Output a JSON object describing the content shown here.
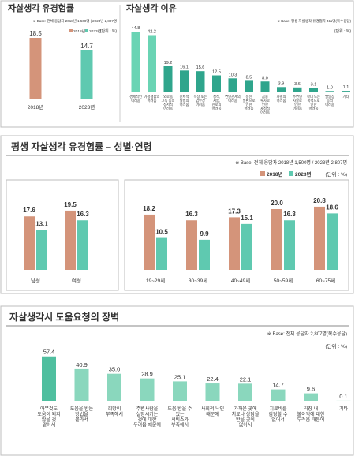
{
  "chart_data": [
    {
      "type": "bar",
      "title": "자살생각 유경험률",
      "note": "※ Base: 전체 응답자 2018년 1,500명 | 2023년 2,807명",
      "unit": "(단위 : %)",
      "categories": [
        "2018년",
        "2023년"
      ],
      "values": [
        18.5,
        14.7
      ],
      "value_labels": [
        "18.5",
        "14.7"
      ],
      "colors": [
        "#d4947a",
        "#5fc9b0"
      ],
      "legend": true
    },
    {
      "type": "bar",
      "title": "자살생각 이유",
      "note": "※ Base: 평생 자살생각 유경험자 411명(복수응답)",
      "unit": "(단위 : %)",
      "categories": [
        "경제적인\n어려움",
        "가정생활의\n어려움",
        "외로움\n고독 등의\n정서적\n어려움",
        "신체적\n질병의\n어려움",
        "직장 또는\n업무상\n어려움",
        "성적,\n시험,\n진로의\n어려움",
        "연인관계의\n어려움",
        "정신\n질환으로\n인한\n어려움",
        "금융\n투자로\n인한\n재정적\n어려움",
        "사별의\n어려움",
        "주변인\n자살로\n인한\n어려움",
        "학대 또는\n폭력으로\n인한\n어려움",
        "발달장\n등의\n어려움",
        "기타"
      ],
      "values": [
        44.8,
        42.2,
        19.2,
        16.1,
        15.6,
        12.5,
        10.3,
        8.5,
        8.0,
        3.9,
        3.6,
        3.1,
        1.0,
        1.1
      ],
      "value_labels": [
        "44.8",
        "42.2",
        "19.2",
        "16.1",
        "15.6",
        "12.5",
        "10.3",
        "8.5",
        "8.0",
        "3.9",
        "3.6",
        "3.1",
        "1.0",
        "1.1"
      ],
      "colors": [
        "#6ad4b4",
        "#6ad4b4",
        "#2fa58c",
        "#2fa58c",
        "#2fa58c",
        "#2fa58c",
        "#2fa58c",
        "#2fa58c",
        "#2fa58c",
        "#2fa58c",
        "#2fa58c",
        "#2fa58c",
        "#2fa58c",
        "#2fa58c"
      ]
    },
    {
      "type": "grouped_bar",
      "title": "평생 자살생각 유경험률 – 성별·연령",
      "note": "※ Base: 전체 응답자 2018년 1,500명 / 2023년 2,807명",
      "unit": "(단위 : %)",
      "categories": [
        "남성",
        "여성",
        "19~29세",
        "30~39세",
        "40~49세",
        "50~59세",
        "60~75세"
      ],
      "series": [
        {
          "name": "2018년",
          "color": "#d4947a",
          "values": [
            17.6,
            19.5,
            18.2,
            16.3,
            17.3,
            20.0,
            20.8
          ],
          "value_labels": [
            "17.6",
            "19.5",
            "18.2",
            "16.3",
            "17.3",
            "20.0",
            "20.8"
          ]
        },
        {
          "name": "2023년",
          "color": "#5fc9b0",
          "values": [
            13.1,
            16.3,
            10.5,
            9.9,
            15.1,
            16.3,
            18.6
          ],
          "value_labels": [
            "13.1",
            "16.3",
            "10.5",
            "9.9",
            "15.1",
            "16.3",
            "18.6"
          ]
        }
      ]
    },
    {
      "type": "bar",
      "title": "자살생각시 도움요청의 장벽",
      "note": "※ Base: 전체 응답자 2,807명(복수응답)",
      "unit": "(단위 : %)",
      "categories": [
        "아무것도\n도움이 되지\n않을 것\n같아서",
        "도움을 받는\n방법을\n몰라서",
        "희망이\n부족해서",
        "주변사람을\n실망시키는\n것에 대한\n두려움 때문에",
        "도움 받을 수\n있는\n서비스가\n부족해서",
        "사회적 낙인\n때문에",
        "가까운 곳에\n치료나 상담을\n받을 곳이\n없어서",
        "치료비를\n감당할 수\n없어서",
        "직장 내\n불이익에 대한\n두려움 때문에",
        "기타"
      ],
      "values": [
        57.4,
        40.9,
        35.0,
        28.9,
        25.1,
        22.4,
        22.1,
        14.7,
        9.6,
        0.1
      ],
      "value_labels": [
        "57.4",
        "40.9",
        "35.0",
        "28.9",
        "25.1",
        "22.4",
        "22.1",
        "14.7",
        "9.6",
        "0.1"
      ],
      "colors": [
        "#4fbf9f",
        "#8ad7bd",
        "#8ad7bd",
        "#8ad7bd",
        "#8ad7bd",
        "#8ad7bd",
        "#8ad7bd",
        "#8ad7bd",
        "#8ad7bd",
        "#8ad7bd"
      ]
    }
  ]
}
